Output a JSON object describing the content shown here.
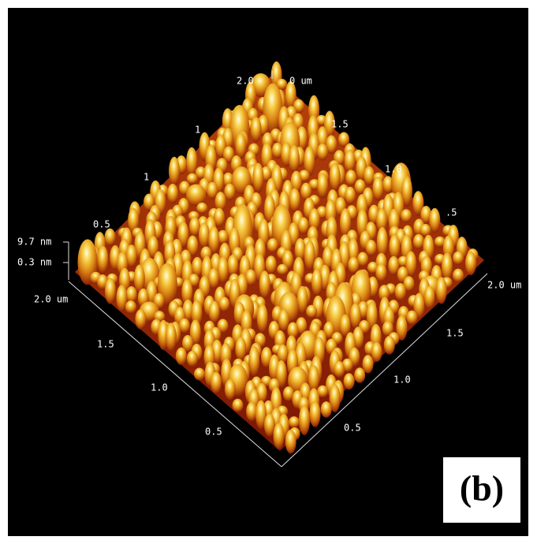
{
  "scale": {
    "top": [
      "2.0",
      "0 um"
    ],
    "back_left": [
      "1",
      "1",
      "0.5"
    ],
    "back_right": [
      "1.5",
      "1.0",
      ".5"
    ],
    "right_end": "2.0 um",
    "front_left": [
      "2.0 um",
      "1.5",
      "1.0",
      "0.5"
    ],
    "front_right": [
      "0.5",
      "1.0",
      "1.5"
    ]
  },
  "z_scale": [
    "9.7 nm",
    "0.3 nm"
  ],
  "panel_label": "(b)"
}
